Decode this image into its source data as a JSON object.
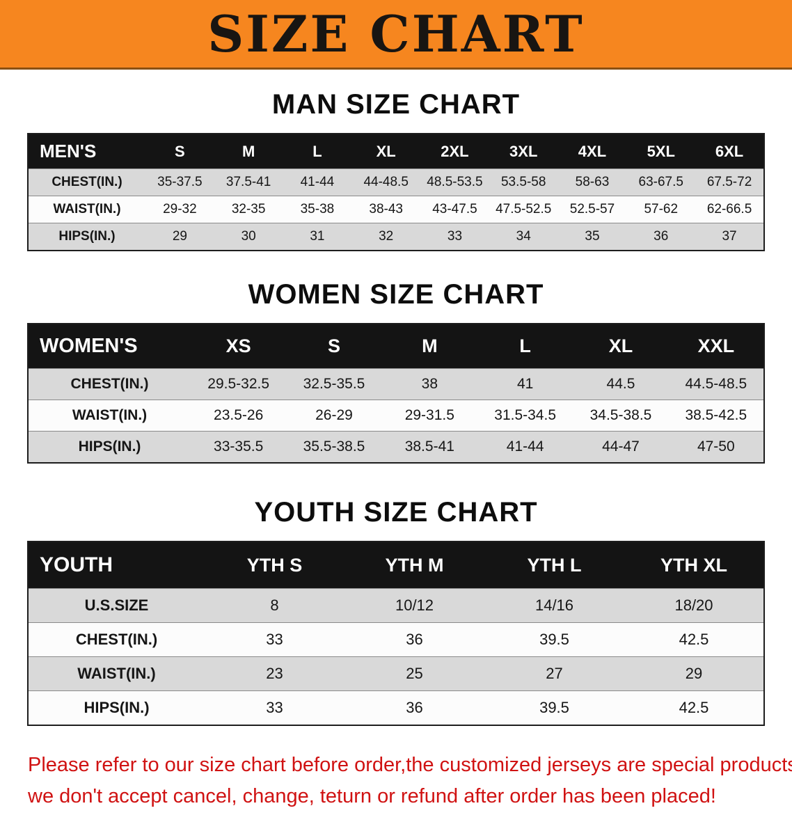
{
  "banner": {
    "title": "SIZE CHART",
    "background_color": "#f6861f",
    "text_color": "#181512"
  },
  "tables": [
    {
      "heading": "MAN SIZE CHART",
      "header": [
        "MEN'S",
        "S",
        "M",
        "L",
        "XL",
        "2XL",
        "3XL",
        "4XL",
        "5XL",
        "6XL"
      ],
      "rows": [
        [
          "CHEST(IN.)",
          "35-37.5",
          "37.5-41",
          "41-44",
          "44-48.5",
          "48.5-53.5",
          "53.5-58",
          "58-63",
          "63-67.5",
          "67.5-72"
        ],
        [
          "WAIST(IN.)",
          "29-32",
          "32-35",
          "35-38",
          "38-43",
          "43-47.5",
          "47.5-52.5",
          "52.5-57",
          "57-62",
          "62-66.5"
        ],
        [
          "HIPS(IN.)",
          "29",
          "30",
          "31",
          "32",
          "33",
          "34",
          "35",
          "36",
          "37"
        ]
      ]
    },
    {
      "heading": "WOMEN SIZE CHART",
      "header": [
        "WOMEN'S",
        "XS",
        "S",
        "M",
        "L",
        "XL",
        "XXL"
      ],
      "rows": [
        [
          "CHEST(IN.)",
          "29.5-32.5",
          "32.5-35.5",
          "38",
          "41",
          "44.5",
          "44.5-48.5"
        ],
        [
          "WAIST(IN.)",
          "23.5-26",
          "26-29",
          "29-31.5",
          "31.5-34.5",
          "34.5-38.5",
          "38.5-42.5"
        ],
        [
          "HIPS(IN.)",
          "33-35.5",
          "35.5-38.5",
          "38.5-41",
          "41-44",
          "44-47",
          "47-50"
        ]
      ]
    },
    {
      "heading": "YOUTH SIZE CHART",
      "header": [
        "YOUTH",
        "YTH S",
        "YTH M",
        "YTH L",
        "YTH XL"
      ],
      "rows": [
        [
          "U.S.SIZE",
          "8",
          "10/12",
          "14/16",
          "18/20"
        ],
        [
          "CHEST(IN.)",
          "33",
          "36",
          "39.5",
          "42.5"
        ],
        [
          "WAIST(IN.)",
          "23",
          "25",
          "27",
          "29"
        ],
        [
          "HIPS(IN.)",
          "33",
          "36",
          "39.5",
          "42.5"
        ]
      ]
    }
  ],
  "disclaimer": {
    "line1": "Please refer to our size chart before order,the customized jerseys are special products,",
    "line2": "we don't accept cancel, change, teturn or refund after order has been placed!",
    "color": "#d01212"
  }
}
